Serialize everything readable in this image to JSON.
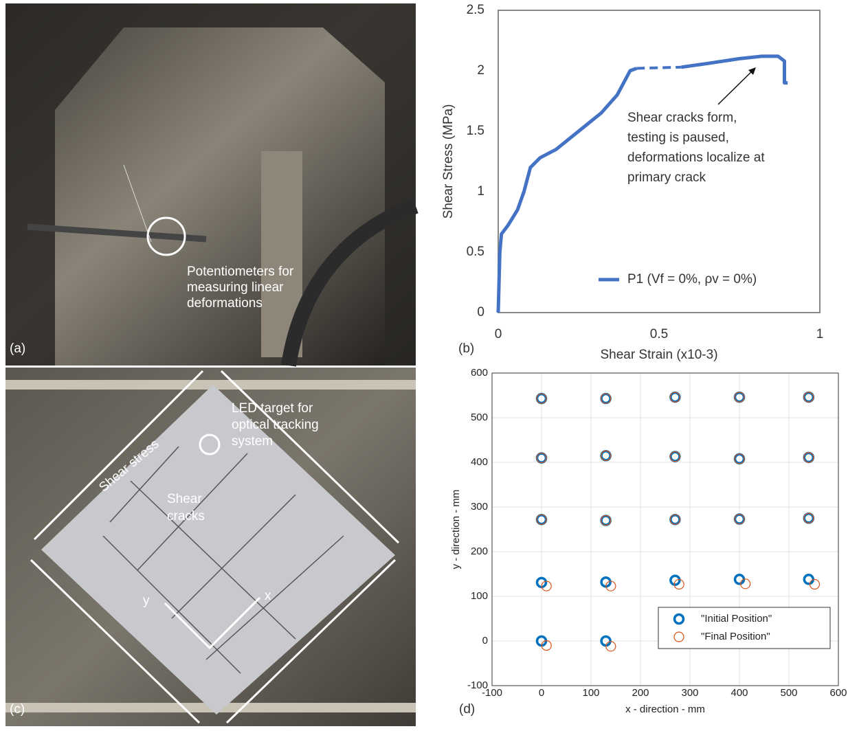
{
  "photo_a": {
    "panel_label": "(a)",
    "annotation_lines": [
      "Potentiometers for",
      "measuring linear",
      "deformations"
    ]
  },
  "photo_c": {
    "panel_label": "(c)",
    "shear_stress": "Shear stress",
    "led_lines": [
      "LED target for",
      "optical tracking",
      "system"
    ],
    "cracks_lines": [
      "Shear",
      "cracks"
    ],
    "axis_y": "y",
    "axis_x": "x"
  },
  "chart_data": [
    {
      "type": "line",
      "panel_label": "(b)",
      "x_label": "Shear Strain (x10-3)",
      "y_label": "Shear Stress (MPa)",
      "annotation_lines": [
        "Shear cracks form,",
        "testing is paused,",
        "deformations localize at",
        "primary crack"
      ],
      "xlim": [
        0,
        1
      ],
      "xticks": [
        0,
        0.5,
        1
      ],
      "ylim": [
        0,
        2.5
      ],
      "yticks": [
        0,
        0.5,
        1,
        1.5,
        2,
        2.5
      ],
      "legend": "lower right",
      "series": [
        {
          "name": "P1 (Vf = 0%, ρv = 0%)",
          "color": "#4472c4",
          "x": [
            0,
            0.002,
            0.005,
            0.01,
            0.03,
            0.06,
            0.08,
            0.1,
            0.13,
            0.18,
            0.25,
            0.32,
            0.37,
            0.41,
            0.43,
            null,
            0.57,
            0.65,
            0.75,
            0.82,
            0.87,
            0.89,
            0.89,
            0.9
          ],
          "values": [
            0,
            0.2,
            0.5,
            0.65,
            0.72,
            0.85,
            1.0,
            1.2,
            1.28,
            1.35,
            1.5,
            1.65,
            1.8,
            2.0,
            2.02,
            null,
            2.03,
            2.06,
            2.1,
            2.12,
            2.12,
            2.08,
            1.9,
            1.9
          ]
        }
      ]
    },
    {
      "type": "scatter",
      "panel_label": "(d)",
      "x_label": "x - direction - mm",
      "y_label": "y - direction - mm",
      "xlim": [
        -100,
        600
      ],
      "xticks": [
        -100,
        0,
        100,
        200,
        300,
        400,
        500,
        600
      ],
      "ylim": [
        -100,
        600
      ],
      "yticks": [
        -100,
        0,
        100,
        200,
        300,
        400,
        500,
        600
      ],
      "grid": true,
      "legend": "lower right",
      "series": [
        {
          "name": "\"Initial Position\"",
          "color": "#0072bd",
          "x": [
            0,
            130,
            270,
            400,
            540,
            0,
            130,
            270,
            400,
            540,
            0,
            130,
            270,
            400,
            540,
            0,
            130,
            270,
            400,
            540,
            0,
            130
          ],
          "values": [
            543,
            543,
            546,
            546,
            546,
            410,
            415,
            413,
            408,
            411,
            272,
            270,
            272,
            273,
            275,
            131,
            132,
            136,
            138,
            138,
            0,
            0
          ]
        },
        {
          "name": "\"Final Position\"",
          "color": "#d95319",
          "x": [
            0,
            130,
            270,
            400,
            540,
            0,
            130,
            270,
            400,
            540,
            0,
            130,
            270,
            400,
            540,
            10,
            140,
            278,
            412,
            552,
            10,
            140
          ],
          "values": [
            543,
            543,
            546,
            546,
            546,
            410,
            415,
            413,
            408,
            411,
            272,
            270,
            272,
            273,
            275,
            123,
            123,
            127,
            128,
            127,
            -10,
            -12
          ]
        }
      ]
    }
  ]
}
